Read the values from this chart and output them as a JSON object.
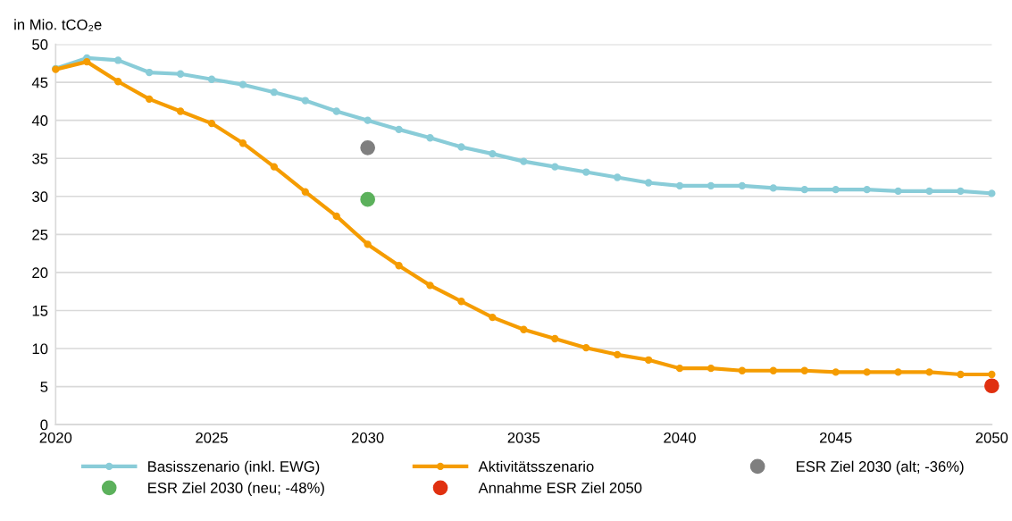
{
  "chart_data": {
    "type": "line",
    "ylabel": "in Mio. tCO₂e",
    "x": [
      2020,
      2021,
      2022,
      2023,
      2024,
      2025,
      2026,
      2027,
      2028,
      2029,
      2030,
      2031,
      2032,
      2033,
      2034,
      2035,
      2036,
      2037,
      2038,
      2039,
      2040,
      2041,
      2042,
      2043,
      2044,
      2045,
      2046,
      2047,
      2048,
      2049,
      2050
    ],
    "series": [
      {
        "name": "Basisszenario (inkl. EWG)",
        "color": "#89ccd8",
        "values": [
          46.8,
          48.2,
          47.9,
          46.3,
          46.1,
          45.4,
          44.7,
          43.7,
          42.6,
          41.2,
          40.0,
          38.8,
          37.7,
          36.5,
          35.6,
          34.6,
          33.9,
          33.2,
          32.5,
          31.8,
          31.4,
          31.4,
          31.4,
          31.1,
          30.9,
          30.9,
          30.9,
          30.7,
          30.7,
          30.7,
          30.4
        ]
      },
      {
        "name": "Aktivitätsszenario",
        "color": "#f59c00",
        "values": [
          46.7,
          47.7,
          45.1,
          42.8,
          41.2,
          39.6,
          37.0,
          33.9,
          30.6,
          27.4,
          23.7,
          20.9,
          18.3,
          16.2,
          14.1,
          12.5,
          11.3,
          10.1,
          9.2,
          8.5,
          7.4,
          7.4,
          7.1,
          7.1,
          7.1,
          6.9,
          6.9,
          6.9,
          6.9,
          6.6,
          6.6
        ]
      },
      {
        "name": "ESR Ziel 2030 (alt; -36%)",
        "type": "scatter",
        "color": "#7f7f7f",
        "values": [
          null,
          null,
          null,
          null,
          null,
          null,
          null,
          null,
          null,
          null,
          36.4,
          null,
          null,
          null,
          null,
          null,
          null,
          null,
          null,
          null,
          null,
          null,
          null,
          null,
          null,
          null,
          null,
          null,
          null,
          null,
          null
        ]
      },
      {
        "name": "ESR Ziel 2030 (neu; -48%)",
        "type": "scatter",
        "color": "#5cb15c",
        "values": [
          null,
          null,
          null,
          null,
          null,
          null,
          null,
          null,
          null,
          null,
          29.6,
          null,
          null,
          null,
          null,
          null,
          null,
          null,
          null,
          null,
          null,
          null,
          null,
          null,
          null,
          null,
          null,
          null,
          null,
          null,
          null
        ]
      },
      {
        "name": "Annahme ESR Ziel 2050",
        "type": "scatter",
        "color": "#e03010",
        "values": [
          null,
          null,
          null,
          null,
          null,
          null,
          null,
          null,
          null,
          null,
          null,
          null,
          null,
          null,
          null,
          null,
          null,
          null,
          null,
          null,
          null,
          null,
          null,
          null,
          null,
          null,
          null,
          null,
          null,
          null,
          5.1
        ]
      }
    ],
    "xlim": [
      2020,
      2050
    ],
    "xticks": [
      2020,
      2025,
      2030,
      2035,
      2040,
      2045,
      2050
    ],
    "ylim": [
      0,
      50
    ],
    "yticks": [
      0,
      5,
      10,
      15,
      20,
      25,
      30,
      35,
      40,
      45,
      50
    ],
    "grid": "y",
    "legend": "bottom",
    "marker": "circle",
    "line_style": "solid"
  }
}
